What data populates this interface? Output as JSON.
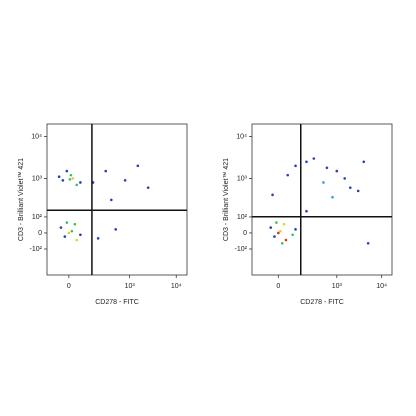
{
  "chart_data": [
    {
      "type": "scatter",
      "x_label": "CD278 - FITC",
      "y_label": "CD3 - Brilliant Violet™ 421",
      "scale": "biexponential",
      "xlim": [
        -130,
        17000
      ],
      "ylim": [
        -500,
        20000
      ],
      "xticks": [
        0,
        {
          "value": 1000,
          "label": "10³"
        },
        {
          "value": 10000,
          "label": "10⁴"
        }
      ],
      "yticks": [
        {
          "value": -100,
          "label": "-10²"
        },
        0,
        {
          "value": 100,
          "label": "10²"
        },
        {
          "value": 1000,
          "label": "10³"
        },
        {
          "value": 10000,
          "label": "10⁴"
        }
      ],
      "gates": {
        "x": 140,
        "y": 160
      },
      "x": [
        -30,
        10,
        40,
        -10,
        20,
        60,
        -50,
        5,
        -20,
        15,
        40,
        -40,
        0,
        30,
        60,
        -10,
        300,
        800,
        1500,
        200,
        500,
        2500,
        400,
        150
      ],
      "y": [
        900,
        1200,
        700,
        1500,
        1000,
        800,
        1100,
        950,
        -20,
        10,
        -40,
        30,
        0,
        50,
        -10,
        60,
        1500,
        900,
        2000,
        -30,
        20,
        600,
        300,
        800
      ],
      "colors": [
        "#2a3fb8",
        "#3cc060",
        "#3cc060",
        "#2a3fb8",
        "#e8d020",
        "#2a3fb8",
        "#2a3fb8",
        "#3cc060",
        "#2a3fb8",
        "#3cc060",
        "#e8d020",
        "#2a3fb8",
        "#e8d020",
        "#3cc060",
        "#2a3fb8",
        "#3cc060",
        "#2a3fb8",
        "#2a3fb8",
        "#2a3fb8",
        "#2a3fb8",
        "#2a3fb8",
        "#2a3fb8",
        "#2a3fb8",
        "#2a3fb8"
      ]
    },
    {
      "type": "scatter",
      "x_label": "CD278 - FITC",
      "y_label": "CD3 - Brilliant Violet™ 421",
      "scale": "biexponential",
      "xlim": [
        -180,
        17000
      ],
      "ylim": [
        -500,
        20000
      ],
      "xticks": [
        0,
        {
          "value": 1000,
          "label": "10³"
        },
        {
          "value": 10000,
          "label": "10⁴"
        }
      ],
      "yticks": [
        {
          "value": -100,
          "label": "-10²"
        },
        0,
        {
          "value": 100,
          "label": "10²"
        },
        {
          "value": 1000,
          "label": "10³"
        },
        {
          "value": 10000,
          "label": "10⁴"
        }
      ],
      "gates": {
        "x": 142,
        "y": 101
      },
      "x": [
        -20,
        10,
        40,
        -40,
        0,
        30,
        80,
        -10,
        100,
        20,
        -30,
        50,
        200,
        500,
        1000,
        2000,
        300,
        800,
        1500,
        100,
        3000,
        600,
        5000,
        200,
        4000
      ],
      "y": [
        -20,
        10,
        -40,
        30,
        0,
        50,
        -10,
        60,
        20,
        -60,
        400,
        1200,
        2500,
        800,
        1500,
        600,
        3000,
        350,
        1000,
        2000,
        500,
        1800,
        -60,
        150,
        2500
      ],
      "colors": [
        "#2a3fb8",
        "#e8d020",
        "#e03020",
        "#2a3fb8",
        "#e03020",
        "#e8d020",
        "#3cc060",
        "#3cc060",
        "#2a3fb8",
        "#3cc060",
        "#2a3fb8",
        "#2a3fb8",
        "#2a3fb8",
        "#30a0d0",
        "#2a3fb8",
        "#2a3fb8",
        "#2a3fb8",
        "#30a0d0",
        "#2a3fb8",
        "#2a3fb8",
        "#2a3fb8",
        "#2a3fb8",
        "#2a3fb8",
        "#2a3fb8",
        "#2a3fb8"
      ]
    }
  ]
}
